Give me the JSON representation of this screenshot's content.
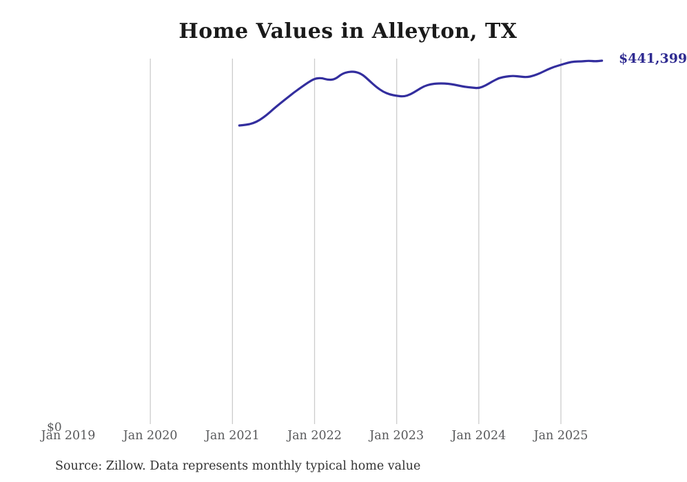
{
  "page": {
    "background": "#ffffff"
  },
  "chart_data": {
    "type": "line",
    "title": "Home Values in Alleyton, TX",
    "source_note": "Source: Zillow. Data represents monthly typical home value",
    "end_label": "$441,399",
    "line_color": "#332e9e",
    "end_label_color": "#2f2b91",
    "grid_color": "#cccccc",
    "tick_label_color": "#58595b",
    "legend_position": "none",
    "grid": "vertical-only",
    "y_axis": {
      "zero_label": "$0",
      "min": 0,
      "max_rendered_value": 441399
    },
    "x_ticks": [
      {
        "label": "Jan 2019",
        "year": 2019,
        "gridline": false
      },
      {
        "label": "Jan 2020",
        "year": 2020,
        "gridline": true
      },
      {
        "label": "Jan 2021",
        "year": 2021,
        "gridline": true
      },
      {
        "label": "Jan 2022",
        "year": 2022,
        "gridline": true
      },
      {
        "label": "Jan 2023",
        "year": 2023,
        "gridline": true
      },
      {
        "label": "Jan 2024",
        "year": 2024,
        "gridline": true
      },
      {
        "label": "Jan 2025",
        "year": 2025,
        "gridline": true
      }
    ],
    "series": [
      {
        "name": "Monthly typical home value",
        "points": [
          [
            "2021-02",
            363400
          ],
          [
            "2021-03",
            364200
          ],
          [
            "2021-04",
            366000
          ],
          [
            "2021-05",
            370000
          ],
          [
            "2021-06",
            376000
          ],
          [
            "2021-07",
            383300
          ],
          [
            "2021-08",
            390100
          ],
          [
            "2021-09",
            396700
          ],
          [
            "2021-10",
            403200
          ],
          [
            "2021-11",
            409100
          ],
          [
            "2021-12",
            414900
          ],
          [
            "2022-01",
            419800
          ],
          [
            "2022-02",
            420700
          ],
          [
            "2022-03",
            418200
          ],
          [
            "2022-04",
            419000
          ],
          [
            "2022-05",
            425600
          ],
          [
            "2022-06",
            428100
          ],
          [
            "2022-07",
            428100
          ],
          [
            "2022-08",
            424800
          ],
          [
            "2022-09",
            417300
          ],
          [
            "2022-10",
            409900
          ],
          [
            "2022-11",
            404100
          ],
          [
            "2022-12",
            400700
          ],
          [
            "2023-01",
            399100
          ],
          [
            "2023-02",
            398200
          ],
          [
            "2023-03",
            400700
          ],
          [
            "2023-04",
            405700
          ],
          [
            "2023-05",
            410700
          ],
          [
            "2023-06",
            413200
          ],
          [
            "2023-07",
            414000
          ],
          [
            "2023-08",
            414000
          ],
          [
            "2023-09",
            413200
          ],
          [
            "2023-10",
            411500
          ],
          [
            "2023-11",
            409900
          ],
          [
            "2023-12",
            409000
          ],
          [
            "2024-01",
            408200
          ],
          [
            "2024-02",
            411500
          ],
          [
            "2024-03",
            416500
          ],
          [
            "2024-04",
            420700
          ],
          [
            "2024-05",
            422300
          ],
          [
            "2024-06",
            423200
          ],
          [
            "2024-07",
            422300
          ],
          [
            "2024-08",
            421500
          ],
          [
            "2024-09",
            423200
          ],
          [
            "2024-10",
            426500
          ],
          [
            "2024-11",
            430600
          ],
          [
            "2024-12",
            434000
          ],
          [
            "2025-01",
            436400
          ],
          [
            "2025-02",
            438900
          ],
          [
            "2025-03",
            440500
          ],
          [
            "2025-04",
            440500
          ],
          [
            "2025-05",
            441300
          ],
          [
            "2025-06",
            440600
          ],
          [
            "2025-07",
            441399
          ]
        ]
      }
    ]
  }
}
